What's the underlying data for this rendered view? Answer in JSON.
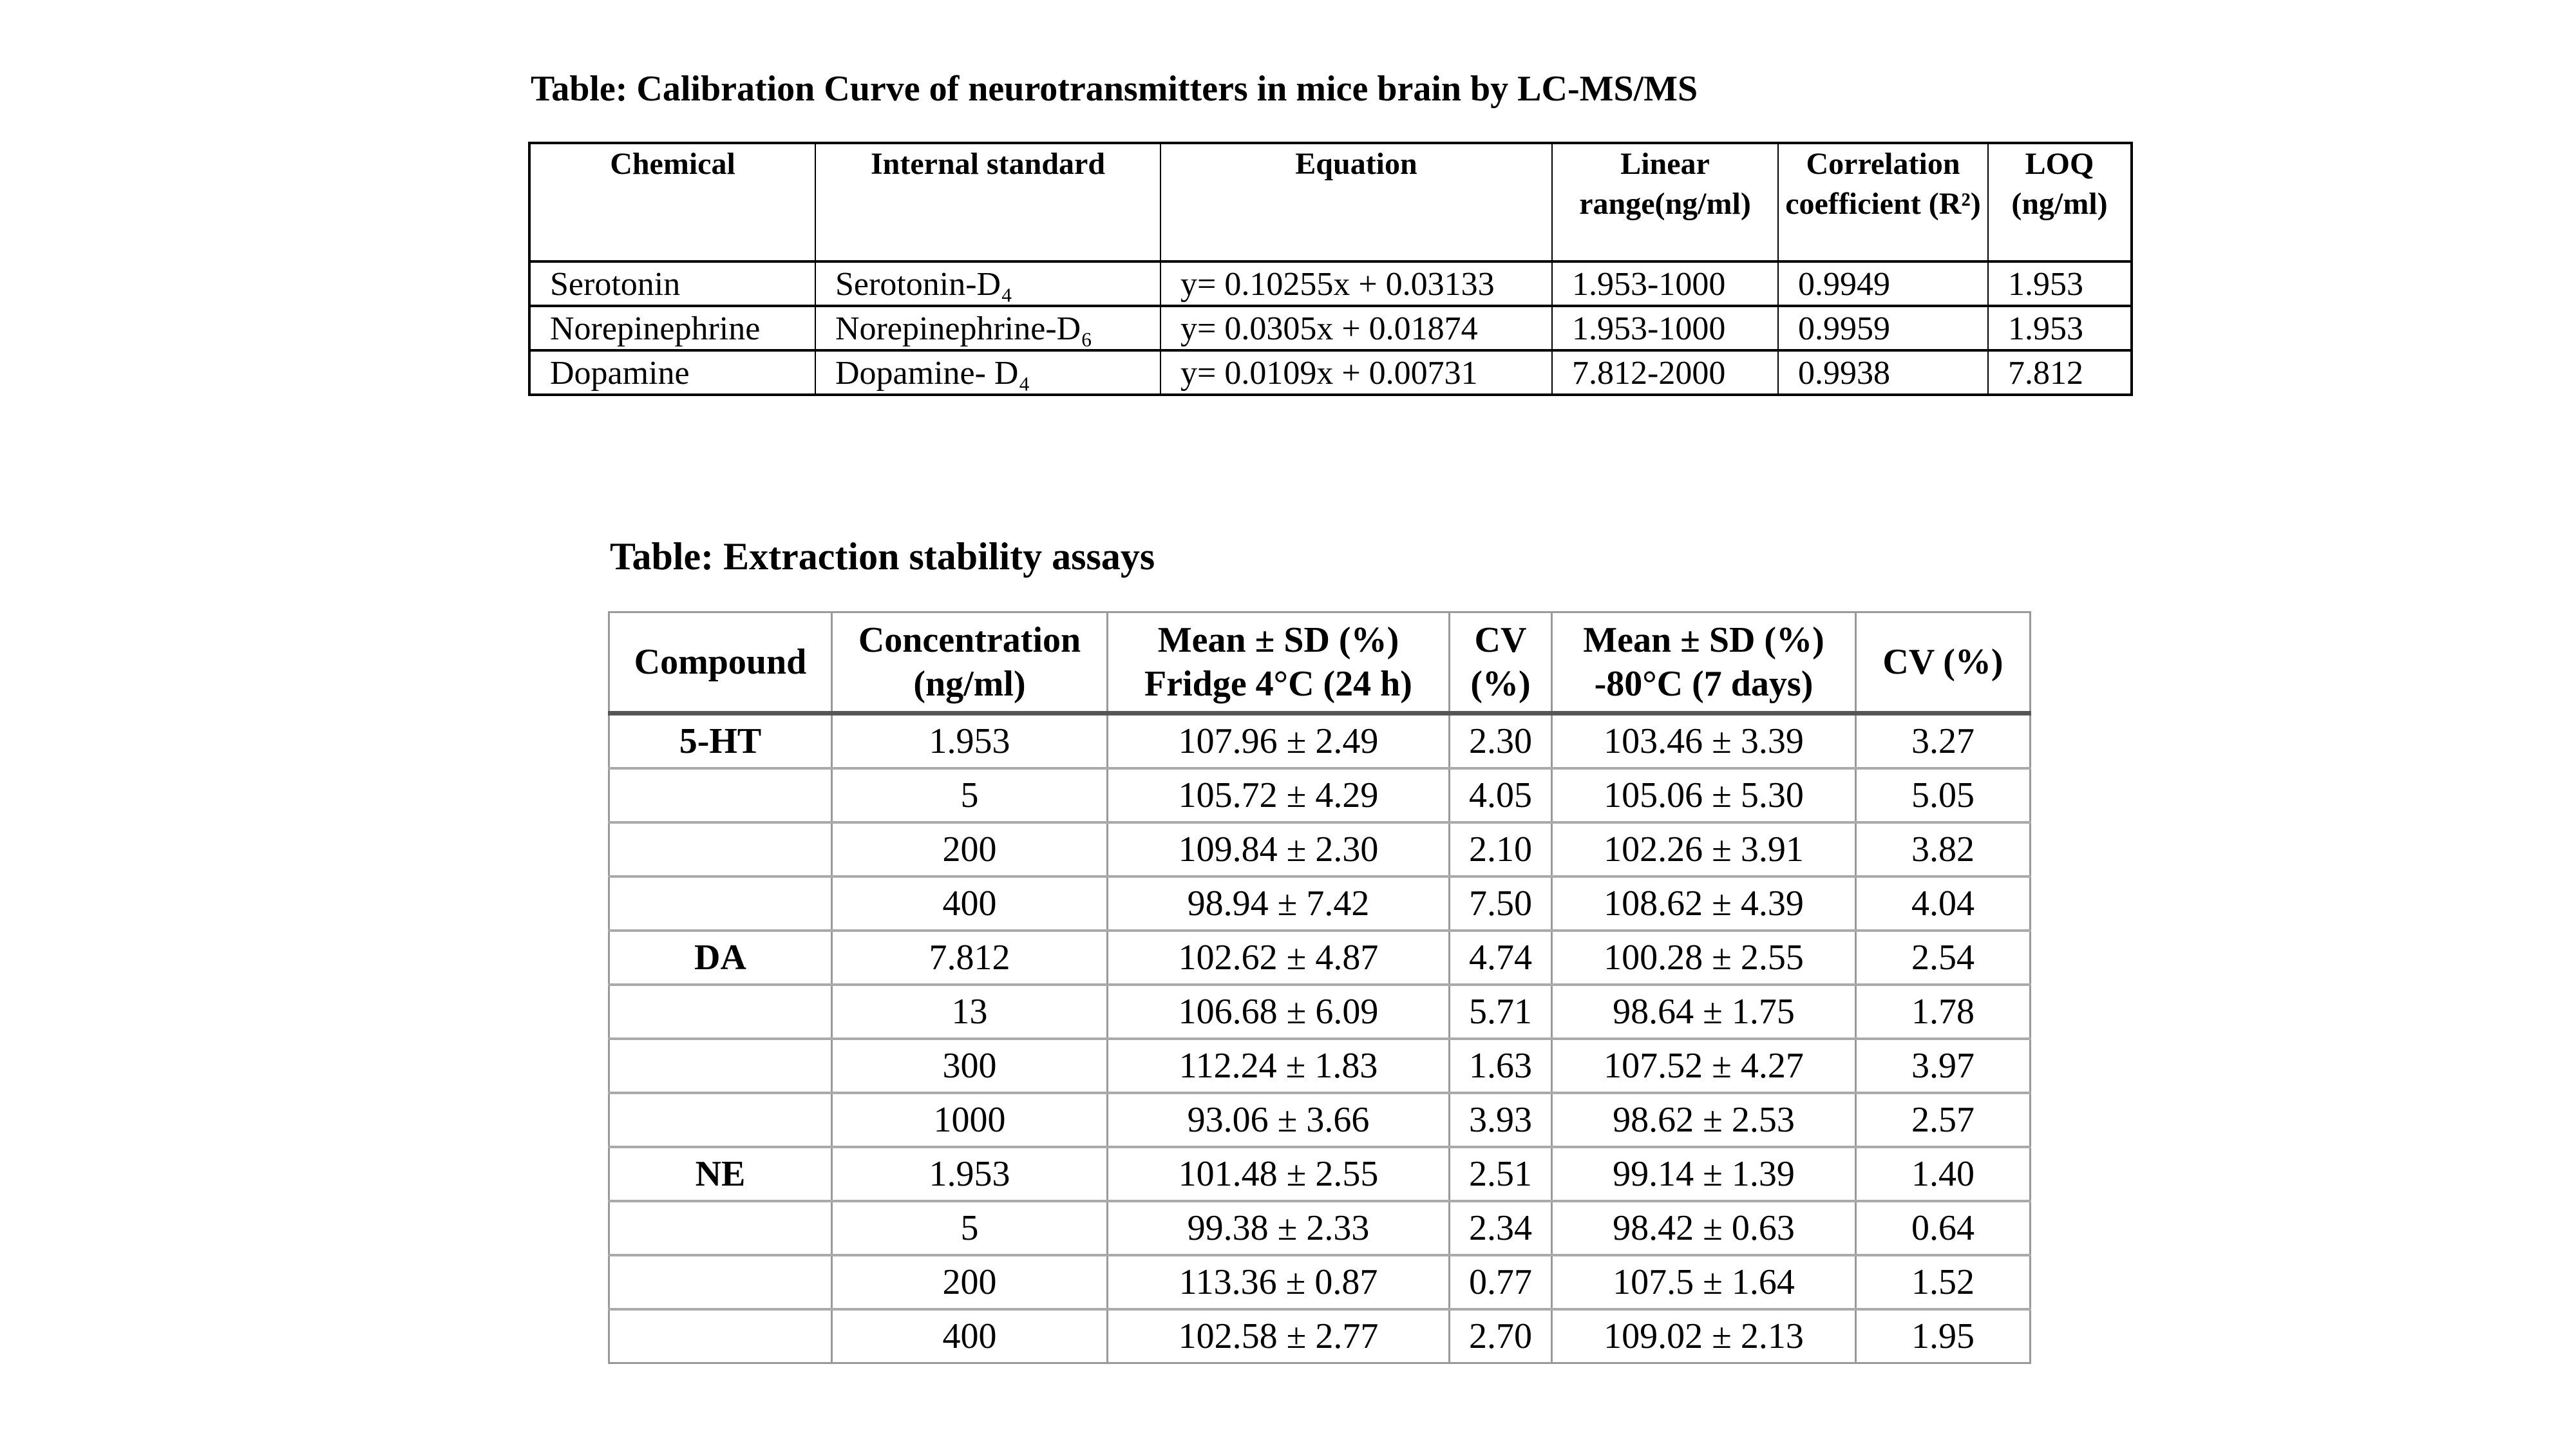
{
  "calibration_table": {
    "title": "Table: Calibration Curve of neurotransmitters in mice brain by LC-MS/MS",
    "headers": [
      "Chemical",
      "Internal standard",
      "Equation",
      "Linear range(ng/ml)",
      "Correlation coefficient (R²)",
      "LOQ (ng/ml)"
    ],
    "rows": [
      [
        "Serotonin",
        "Serotonin-D₄",
        "y= 0.10255x + 0.03133",
        "1.953-1000",
        "0.9949",
        "1.953"
      ],
      [
        "Norepinephrine",
        "Norepinephrine-D₆",
        "y= 0.0305x + 0.01874",
        "1.953-1000",
        "0.9959",
        "1.953"
      ],
      [
        "Dopamine",
        "Dopamine- D₄",
        "y= 0.0109x + 0.00731",
        "7.812-2000",
        "0.9938",
        "7.812"
      ]
    ]
  },
  "stability_table": {
    "title": "Table:  Extraction stability assays",
    "headers": [
      "Compound",
      "Concentration (ng/ml)",
      "Mean ± SD (%) Fridge 4°C (24 h)",
      "CV (%)",
      "Mean ± SD (%) -80°C (7 days)",
      "CV (%)"
    ],
    "rows": [
      [
        "5-HT",
        "1.953",
        "107.96 ± 2.49",
        "2.30",
        "103.46 ± 3.39",
        "3.27"
      ],
      [
        "",
        "5",
        "105.72 ± 4.29",
        "4.05",
        "105.06 ± 5.30",
        "5.05"
      ],
      [
        "",
        "200",
        "109.84 ± 2.30",
        "2.10",
        "102.26 ± 3.91",
        "3.82"
      ],
      [
        "",
        "400",
        "98.94 ± 7.42",
        "7.50",
        "108.62 ± 4.39",
        "4.04"
      ],
      [
        "DA",
        "7.812",
        "102.62 ± 4.87",
        "4.74",
        "100.28 ± 2.55",
        "2.54"
      ],
      [
        "",
        "13",
        "106.68 ± 6.09",
        "5.71",
        "98.64 ± 1.75",
        "1.78"
      ],
      [
        "",
        "300",
        "112.24 ± 1.83",
        "1.63",
        "107.52 ± 4.27",
        "3.97"
      ],
      [
        "",
        "1000",
        "93.06 ± 3.66",
        "3.93",
        "98.62 ± 2.53",
        "2.57"
      ],
      [
        "NE",
        "1.953",
        "101.48 ± 2.55",
        "2.51",
        "99.14 ± 1.39",
        "1.40"
      ],
      [
        "",
        "5",
        "99.38 ± 2.33",
        "2.34",
        "98.42 ± 0.63",
        "0.64"
      ],
      [
        "",
        "200",
        "113.36 ± 0.87",
        "0.77",
        "107.5 ± 1.64",
        "1.52"
      ],
      [
        "",
        "400",
        "102.58 ± 2.77",
        "2.70",
        "109.02 ± 2.13",
        "1.95"
      ]
    ]
  }
}
